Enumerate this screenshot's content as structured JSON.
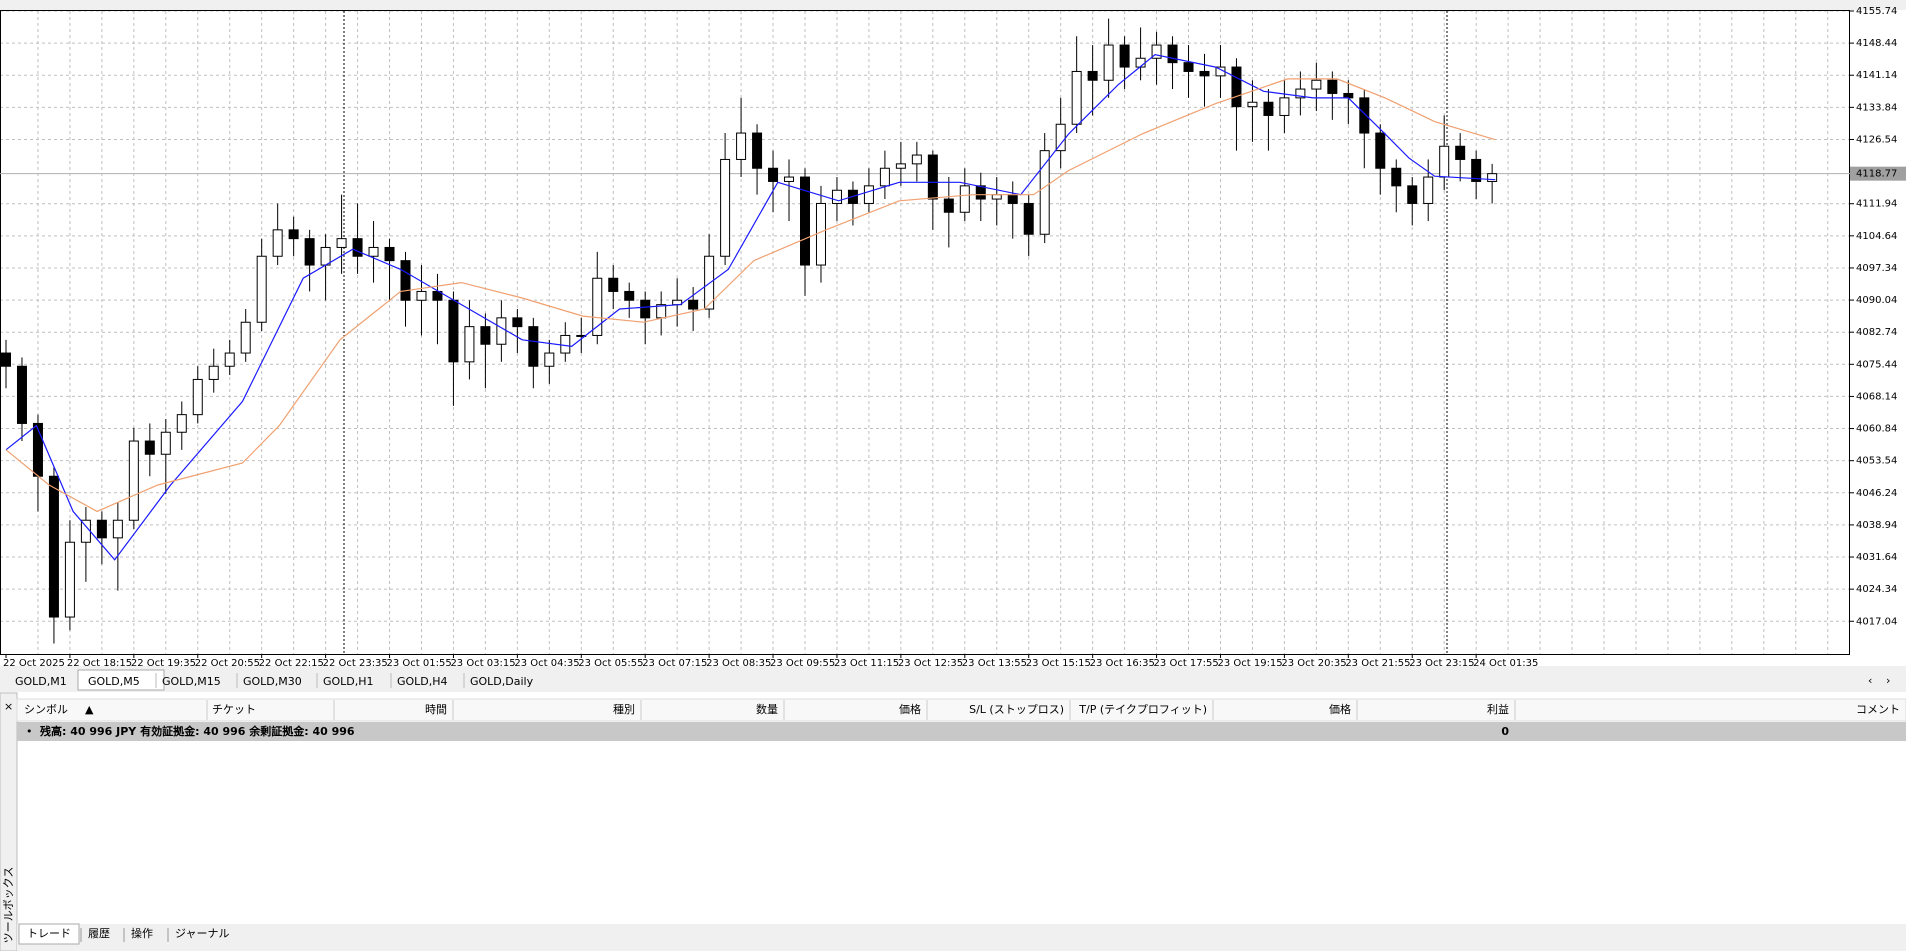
{
  "chart_data": {
    "type": "candlestick",
    "categories": [
      "22 Oct 2025",
      null,
      null,
      null,
      "22 Oct 18:15",
      null,
      null,
      null,
      "22 Oct 19:35",
      null,
      null,
      null,
      "22 Oct 20:55",
      null,
      null,
      null,
      "22 Oct 22:15",
      null,
      null,
      null,
      "22 Oct 23:35",
      null,
      null,
      null,
      "23 Oct 01:55",
      null,
      null,
      null,
      "23 Oct 03:15",
      null,
      null,
      null,
      "23 Oct 04:35",
      null,
      null,
      null,
      "23 Oct 05:55",
      null,
      null,
      null,
      "23 Oct 07:15",
      null,
      null,
      null,
      "23 Oct 08:35",
      null,
      null,
      null,
      "23 Oct 09:55",
      null,
      null,
      null,
      "23 Oct 11:15",
      null,
      null,
      null,
      "23 Oct 12:35",
      null,
      null,
      null,
      "23 Oct 13:55",
      null,
      null,
      null,
      "23 Oct 15:15",
      null,
      null,
      null,
      "23 Oct 16:35",
      null,
      null,
      null,
      "23 Oct 17:55",
      null,
      null,
      null,
      "23 Oct 19:15",
      null,
      null,
      null,
      "23 Oct 20:35",
      null,
      null,
      null,
      "23 Oct 21:55",
      null,
      null,
      null,
      "23 Oct 23:15",
      null,
      null,
      null,
      "24 Oct 01:35",
      null
    ],
    "candles": {
      "open": [
        4078,
        4075,
        4062,
        4050,
        4018,
        4035,
        4040,
        4036,
        4040,
        4058,
        4055,
        4060,
        4064,
        4072,
        4075,
        4078,
        4085,
        4100,
        4106,
        4104,
        4098,
        4102,
        4104,
        4100,
        4102,
        4099,
        4090,
        4092,
        4090,
        4076,
        4084,
        4080,
        4086,
        4084,
        4075,
        4078,
        4082,
        4082,
        4095,
        4092,
        4090,
        4086,
        4089,
        4090,
        4088,
        4100,
        4122,
        4128,
        4120,
        4117,
        4118,
        4098,
        4112,
        4115,
        4112,
        4116,
        4120,
        4121,
        4123,
        4113,
        4110,
        4116,
        4113,
        4114,
        4112,
        4105,
        4124,
        4130,
        4142,
        4140,
        4148,
        4143,
        4145,
        4148,
        4144,
        4142,
        4141,
        4143,
        4134,
        4135,
        4132,
        4136,
        4138,
        4140,
        4137,
        4136,
        4128,
        4120,
        4116,
        4112,
        4118,
        4125,
        4122,
        4117
      ],
      "high": [
        4081,
        4077,
        4064,
        4052,
        4040,
        4043,
        4042,
        4044,
        4061,
        4062,
        4063,
        4067,
        4075,
        4079,
        4081,
        4088,
        4104,
        4112,
        4109,
        4106,
        4105,
        4114,
        4112,
        4108,
        4104,
        4101,
        4098,
        4096,
        4092,
        4090,
        4087,
        4090,
        4088,
        4086,
        4081,
        4085,
        4086,
        4101,
        4098,
        4094,
        4092,
        4092,
        4095,
        4093,
        4105,
        4128,
        4136,
        4130,
        4124,
        4122,
        4120,
        4116,
        4118,
        4117,
        4120,
        4124,
        4126,
        4126,
        4124,
        4118,
        4120,
        4119,
        4118,
        4117,
        4114,
        4128,
        4136,
        4150,
        4148,
        4154,
        4150,
        4152,
        4151,
        4150,
        4148,
        4146,
        4148,
        4145,
        4140,
        4138,
        4140,
        4142,
        4144,
        4142,
        4140,
        4138,
        4130,
        4122,
        4118,
        4122,
        4132,
        4128,
        4124,
        4121
      ],
      "low": [
        4070,
        4058,
        4042,
        4012,
        4015,
        4026,
        4030,
        4024,
        4038,
        4050,
        4046,
        4056,
        4062,
        4069,
        4073,
        4076,
        4083,
        4098,
        4100,
        4092,
        4090,
        4096,
        4096,
        4094,
        4090,
        4084,
        4082,
        4080,
        4066,
        4072,
        4070,
        4076,
        4078,
        4070,
        4071,
        4076,
        4078,
        4080,
        4088,
        4086,
        4080,
        4082,
        4084,
        4083,
        4086,
        4098,
        4118,
        4114,
        4110,
        4108,
        4091,
        4094,
        4108,
        4107,
        4110,
        4113,
        4116,
        4117,
        4106,
        4102,
        4108,
        4108,
        4107,
        4104,
        4100,
        4103,
        4120,
        4128,
        4132,
        4136,
        4138,
        4140,
        4139,
        4138,
        4136,
        4134,
        4136,
        4124,
        4126,
        4124,
        4128,
        4132,
        4133,
        4131,
        4130,
        4120,
        4114,
        4110,
        4107,
        4108,
        4115,
        4117,
        4113,
        4112
      ],
      "close": [
        4075,
        4062,
        4050,
        4018,
        4035,
        4040,
        4036,
        4040,
        4058,
        4055,
        4060,
        4064,
        4072,
        4075,
        4078,
        4085,
        4100,
        4106,
        4104,
        4098,
        4102,
        4104,
        4100,
        4102,
        4099,
        4090,
        4092,
        4090,
        4076,
        4084,
        4080,
        4086,
        4084,
        4075,
        4078,
        4082,
        4082,
        4095,
        4092,
        4090,
        4086,
        4089,
        4090,
        4088,
        4100,
        4122,
        4128,
        4120,
        4117,
        4118,
        4098,
        4112,
        4115,
        4112,
        4116,
        4120,
        4121,
        4123,
        4113,
        4110,
        4116,
        4113,
        4114,
        4112,
        4105,
        4124,
        4130,
        4142,
        4140,
        4148,
        4143,
        4145,
        4148,
        4144,
        4142,
        4141,
        4143,
        4134,
        4135,
        4132,
        4136,
        4138,
        4140,
        4137,
        4136,
        4128,
        4120,
        4116,
        4112,
        4118,
        4125,
        4122,
        4117,
        4118.77
      ]
    },
    "moving_averages": [
      {
        "color": "#1a1aff",
        "x": [
          0,
          1.9,
          4.2,
          6.8,
          10.3,
          14.8,
          18.6,
          21.7,
          24.7,
          28.5,
          32.3,
          35.4,
          38.4,
          42.2,
          45.2,
          48.3,
          52.1,
          55.9,
          59.7,
          63.5,
          66.5,
          69.6,
          71.9,
          75.7,
          78.7,
          81.8,
          84,
          86.3,
          87.8,
          89.4,
          93.2
        ],
        "values": [
          4056,
          4061.5,
          4042,
          4031,
          4048,
          4067,
          4095,
          4101.6,
          4097,
          4089,
          4081,
          4079.5,
          4088,
          4089,
          4097,
          4116.8,
          4112.6,
          4116.8,
          4116.8,
          4114,
          4127.8,
          4139,
          4145.8,
          4143,
          4137.5,
          4136,
          4136,
          4127.8,
          4122.3,
          4118.2,
          4117.4
        ]
      },
      {
        "color": "#f0a070",
        "x": [
          0,
          2.7,
          5.7,
          9.5,
          14.8,
          17.1,
          20.9,
          24.7,
          28.5,
          32.3,
          36.1,
          39.9,
          43.7,
          46.8,
          51.3,
          55.9,
          60.5,
          64.3,
          66.5,
          71.1,
          75.7,
          80.2,
          83.3,
          86.3,
          89.4,
          93.2
        ],
        "values": [
          4056,
          4048,
          4042,
          4048,
          4053,
          4061.5,
          4081,
          4092,
          4094,
          4090.5,
          4086.4,
          4085,
          4088,
          4099,
          4106,
          4112.6,
          4114,
          4114,
          4119.5,
          4127.8,
          4134.7,
          4140.3,
          4140.3,
          4136,
          4130.6,
          4126.5
        ]
      }
    ],
    "current_price": 4118.77,
    "ylim": [
      4009.6,
      4155.74
    ],
    "yticks": [
      4155.74,
      4148.44,
      4141.14,
      4133.84,
      4126.54,
      4111.94,
      4104.64,
      4097.34,
      4090.04,
      4082.74,
      4075.44,
      4068.14,
      4060.84,
      4053.54,
      4046.24,
      4038.94,
      4031.64,
      4024.34,
      4017.04
    ],
    "grid": true
  },
  "chart_tabs": {
    "labels": [
      "GOLD,M1",
      "GOLD,M5",
      "GOLD,M15",
      "GOLD,M30",
      "GOLD,H1",
      "GOLD,H4",
      "GOLD,Daily"
    ],
    "selected_index": 1
  },
  "terminal": {
    "columns": [
      "シンボル",
      "チケット",
      "時間",
      "種別",
      "数量",
      "価格",
      "S/L (ストップロス)",
      "T/P (テイクプロフィット)",
      "価格",
      "利益",
      "コメント"
    ],
    "balance_row": {
      "text": "残高: 40 996 JPY  有効証拠金: 40 996  余剰証拠金: 40 996",
      "profit": 0
    },
    "side_label": "ツールボックス",
    "tabs": {
      "labels": [
        "トレード",
        "履歴",
        "操作",
        "ジャーナル"
      ],
      "selected_index": 0
    }
  }
}
